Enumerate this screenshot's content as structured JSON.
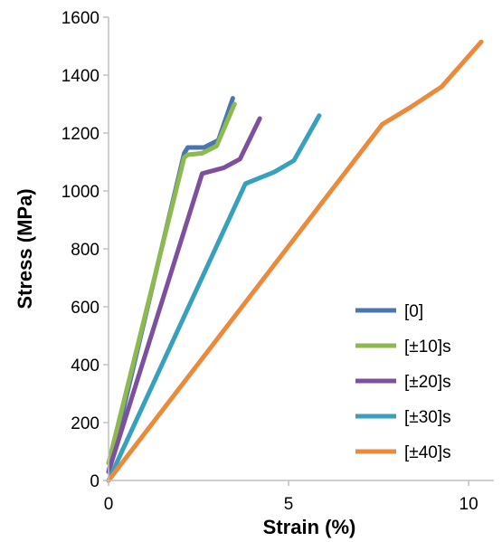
{
  "chart_data": {
    "type": "line",
    "xlabel": "Strain (%)",
    "ylabel": "Stress (MPa)",
    "xlim": [
      0,
      10.7
    ],
    "ylim": [
      0,
      1600
    ],
    "x_ticks": [
      0,
      5,
      10
    ],
    "y_ticks": [
      0,
      200,
      400,
      600,
      800,
      1000,
      1200,
      1400,
      1600
    ],
    "grid": false,
    "legend_position": "bottom-right",
    "series": [
      {
        "name": "[0]",
        "color": "#4a75b0",
        "x": [
          0,
          2.1,
          2.2,
          2.65,
          3.05,
          3.45
        ],
        "y": [
          30,
          1130,
          1150,
          1150,
          1175,
          1320
        ]
      },
      {
        "name": "[±10]s",
        "color": "#8db94f",
        "x": [
          0,
          2.1,
          2.2,
          2.6,
          3.0,
          3.5
        ],
        "y": [
          60,
          1115,
          1125,
          1130,
          1155,
          1300
        ]
      },
      {
        "name": "[±20]s",
        "color": "#7d509f",
        "x": [
          0,
          2.6,
          3.2,
          3.65,
          4.2
        ],
        "y": [
          30,
          1060,
          1080,
          1110,
          1250
        ]
      },
      {
        "name": "[±30]s",
        "color": "#36a0bd",
        "x": [
          0,
          3.8,
          4.6,
          5.15,
          5.85
        ],
        "y": [
          0,
          1025,
          1065,
          1105,
          1260
        ]
      },
      {
        "name": "[±40]s",
        "color": "#ec8a3c",
        "x": [
          0,
          7.6,
          8.4,
          9.25,
          10.35
        ],
        "y": [
          0,
          1230,
          1290,
          1360,
          1515
        ]
      }
    ]
  }
}
